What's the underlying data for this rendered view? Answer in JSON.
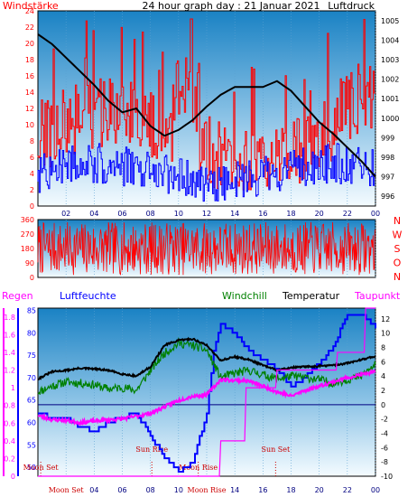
{
  "chart_data": [
    {
      "type": "line",
      "title": "24 hour graph day : 21 Januar 2021",
      "left_label": "Windstärke",
      "right_label": "Luftdruck",
      "x_ticks": [
        "02",
        "04",
        "06",
        "08",
        "10",
        "12",
        "14",
        "16",
        "18",
        "20",
        "22",
        "00"
      ],
      "left_ticks": [
        "0",
        "2",
        "4",
        "6",
        "8",
        "10",
        "12",
        "14",
        "16",
        "18",
        "20",
        "22",
        "24"
      ],
      "left_range": [
        0,
        24
      ],
      "right_ticks": [
        "996",
        "997",
        "998",
        "999",
        "1000",
        "1001",
        "1002",
        "1003",
        "1004",
        "1005"
      ],
      "right_range": [
        995.5,
        1005.5
      ],
      "colors": {
        "wind_gust": "#ff0000",
        "wind_avg": "#0000ff",
        "pressure": "#000000"
      },
      "pressure": {
        "hours": [
          0,
          1,
          2,
          3,
          4,
          5,
          6,
          7,
          8,
          9,
          10,
          11,
          12,
          13,
          14,
          15,
          16,
          17,
          18,
          19,
          20,
          21,
          22,
          23,
          24
        ],
        "values": [
          1004.3,
          1003.8,
          1003.1,
          1002.4,
          1001.7,
          1000.9,
          1000.3,
          1000.5,
          999.6,
          999.1,
          999.4,
          999.9,
          1000.6,
          1001.2,
          1001.6,
          1001.6,
          1001.6,
          1001.9,
          1001.4,
          1000.6,
          999.8,
          999.2,
          998.5,
          997.8,
          997.0
        ]
      }
    },
    {
      "type": "line",
      "title": "",
      "y_ticks": [
        "0",
        "90",
        "180",
        "270",
        "360"
      ],
      "y_range": [
        0,
        360
      ],
      "direction_labels": [
        "N",
        "W",
        "S",
        "O",
        "N"
      ],
      "color": "#ff0000"
    },
    {
      "type": "line",
      "title": "",
      "labels": {
        "rain": "Regen",
        "humidity": "Luftfeuchte",
        "windchill": "Windchill",
        "temperature": "Temperatur",
        "dewpoint": "Taupunkt"
      },
      "x_ticks": [
        "Moon Set",
        "04",
        "06",
        "08",
        "10",
        "Moon Rise",
        "14",
        "16",
        "18",
        "20",
        "22",
        "00"
      ],
      "rain_ticks": [
        "0",
        "0.2",
        "0.4",
        "0.6",
        "0.8",
        "1",
        "1.2",
        "1.4",
        "1.6",
        "1.8"
      ],
      "rain_range": [
        0,
        1.9
      ],
      "humidity_ticks": [
        "50",
        "55",
        "60",
        "65",
        "70",
        "75",
        "80",
        "85"
      ],
      "humidity_range": [
        48,
        85.5
      ],
      "temp_ticks": [
        "-10",
        "-8",
        "-6",
        "-4",
        "-2",
        "0",
        "2",
        "4",
        "6",
        "8",
        "10",
        "12"
      ],
      "temp_range": [
        -10,
        13.5
      ],
      "colors": {
        "rain": "#ff00ff",
        "humidity": "#0000ff",
        "windchill": "#008000",
        "temperature": "#000000",
        "dewpoint": "#ff00ff",
        "rain_bar": "#ff0000",
        "zero_line": "#000080"
      },
      "temperature": {
        "hours": [
          0,
          1,
          2,
          3,
          4,
          5,
          6,
          7,
          8,
          9,
          10,
          11,
          12,
          13,
          14,
          15,
          16,
          17,
          18,
          19,
          20,
          21,
          22,
          23,
          24
        ],
        "values": [
          3.6,
          4.6,
          4.8,
          5.1,
          5.0,
          4.8,
          4.3,
          4.0,
          5.3,
          8.3,
          9.0,
          9.2,
          8.3,
          6.2,
          6.7,
          6.3,
          5.5,
          4.8,
          5.2,
          5.3,
          5.4,
          5.5,
          5.8,
          6.3,
          6.8
        ]
      },
      "windchill": {
        "hours": [
          0,
          1,
          2,
          3,
          4,
          5,
          6,
          7,
          8,
          9,
          10,
          11,
          12,
          13,
          14,
          15,
          16,
          17,
          18,
          19,
          20,
          21,
          22,
          23,
          24
        ],
        "values": [
          1.8,
          2.6,
          3.2,
          3.0,
          2.8,
          2.2,
          2.4,
          2.0,
          4.8,
          7.2,
          8.6,
          8.3,
          7.6,
          3.8,
          4.4,
          4.8,
          4.2,
          3.6,
          4.0,
          3.8,
          3.5,
          3.0,
          3.5,
          4.0,
          5.6
        ]
      },
      "dewpoint": {
        "hours": [
          0,
          1,
          2,
          3,
          4,
          5,
          6,
          7,
          8,
          9,
          10,
          11,
          12,
          13,
          14,
          15,
          16,
          17,
          18,
          19,
          20,
          21,
          22,
          23,
          24
        ],
        "values": [
          -1.5,
          -2.1,
          -2.2,
          -2.5,
          -2.3,
          -2.1,
          -2.0,
          -1.6,
          -1.2,
          -0.3,
          0.6,
          1.2,
          1.4,
          3.5,
          3.4,
          3.3,
          2.6,
          1.8,
          1.2,
          2.0,
          2.6,
          3.2,
          3.8,
          4.2,
          4.6
        ]
      },
      "humidity": {
        "hours": [
          0,
          1,
          2,
          3,
          4,
          5,
          6,
          7,
          8,
          9,
          10,
          11,
          12,
          12.5,
          13,
          14,
          15,
          16,
          17,
          18,
          19,
          20,
          21,
          22,
          23,
          24
        ],
        "values": [
          62,
          61,
          61,
          59,
          58,
          60,
          61,
          62,
          57,
          52,
          49,
          51,
          62,
          76,
          82,
          80,
          76,
          74,
          72,
          68,
          70,
          73,
          77,
          84,
          84,
          81
        ]
      },
      "rain_total": {
        "hours": [
          0,
          12.9,
          13.0,
          14.7,
          14.8,
          16.9,
          17.0,
          21.2,
          21.3,
          23.2,
          23.3,
          24
        ],
        "values": [
          0,
          0,
          0.4,
          0.4,
          1.0,
          1.0,
          1.2,
          1.2,
          1.4,
          1.4,
          1.9,
          1.9
        ]
      },
      "events": [
        {
          "label": "Moon Set",
          "hour": 0.2
        },
        {
          "label": "Sun Rise",
          "hour": 8.1
        },
        {
          "label": "Moon Rise",
          "hour": 11.4
        },
        {
          "label": "Sun Set",
          "hour": 16.9
        }
      ]
    }
  ]
}
